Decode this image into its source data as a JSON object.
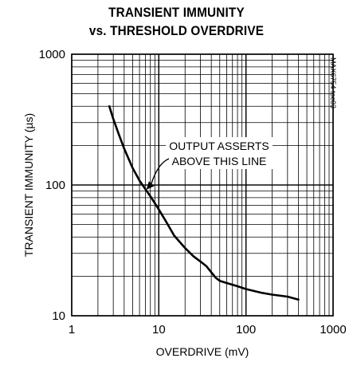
{
  "chart_data": {
    "type": "line",
    "title": "TRANSIENT IMMUNITY",
    "subtitle": "vs. THRESHOLD OVERDRIVE",
    "xlabel": "OVERDRIVE (mV)",
    "ylabel": "TRANSIENT IMMUNITY (µs)",
    "xscale": "log",
    "yscale": "log",
    "xlim": [
      1,
      1000
    ],
    "ylim": [
      10,
      1000
    ],
    "xticks": [
      "1",
      "10",
      "100",
      "1000"
    ],
    "yticks": [
      "10",
      "100",
      "1000"
    ],
    "grid": true,
    "annotation": [
      "OUTPUT ASSERTS",
      "ABOVE THIS LINE"
    ],
    "code_label": "MAX6754 toc03",
    "series": [
      {
        "x": [
          2.7,
          3,
          3.5,
          4,
          5,
          6,
          7,
          8,
          10,
          12,
          15,
          20,
          25,
          30,
          35,
          40,
          45,
          50,
          60,
          80,
          100,
          150,
          200,
          300,
          400
        ],
        "y": [
          400,
          320,
          240,
          190,
          135,
          108,
          93,
          82,
          65,
          53,
          41,
          33,
          28.5,
          26,
          24,
          21.5,
          19.5,
          18.5,
          17.8,
          16.8,
          16,
          15,
          14.5,
          14,
          13.3
        ]
      }
    ]
  }
}
